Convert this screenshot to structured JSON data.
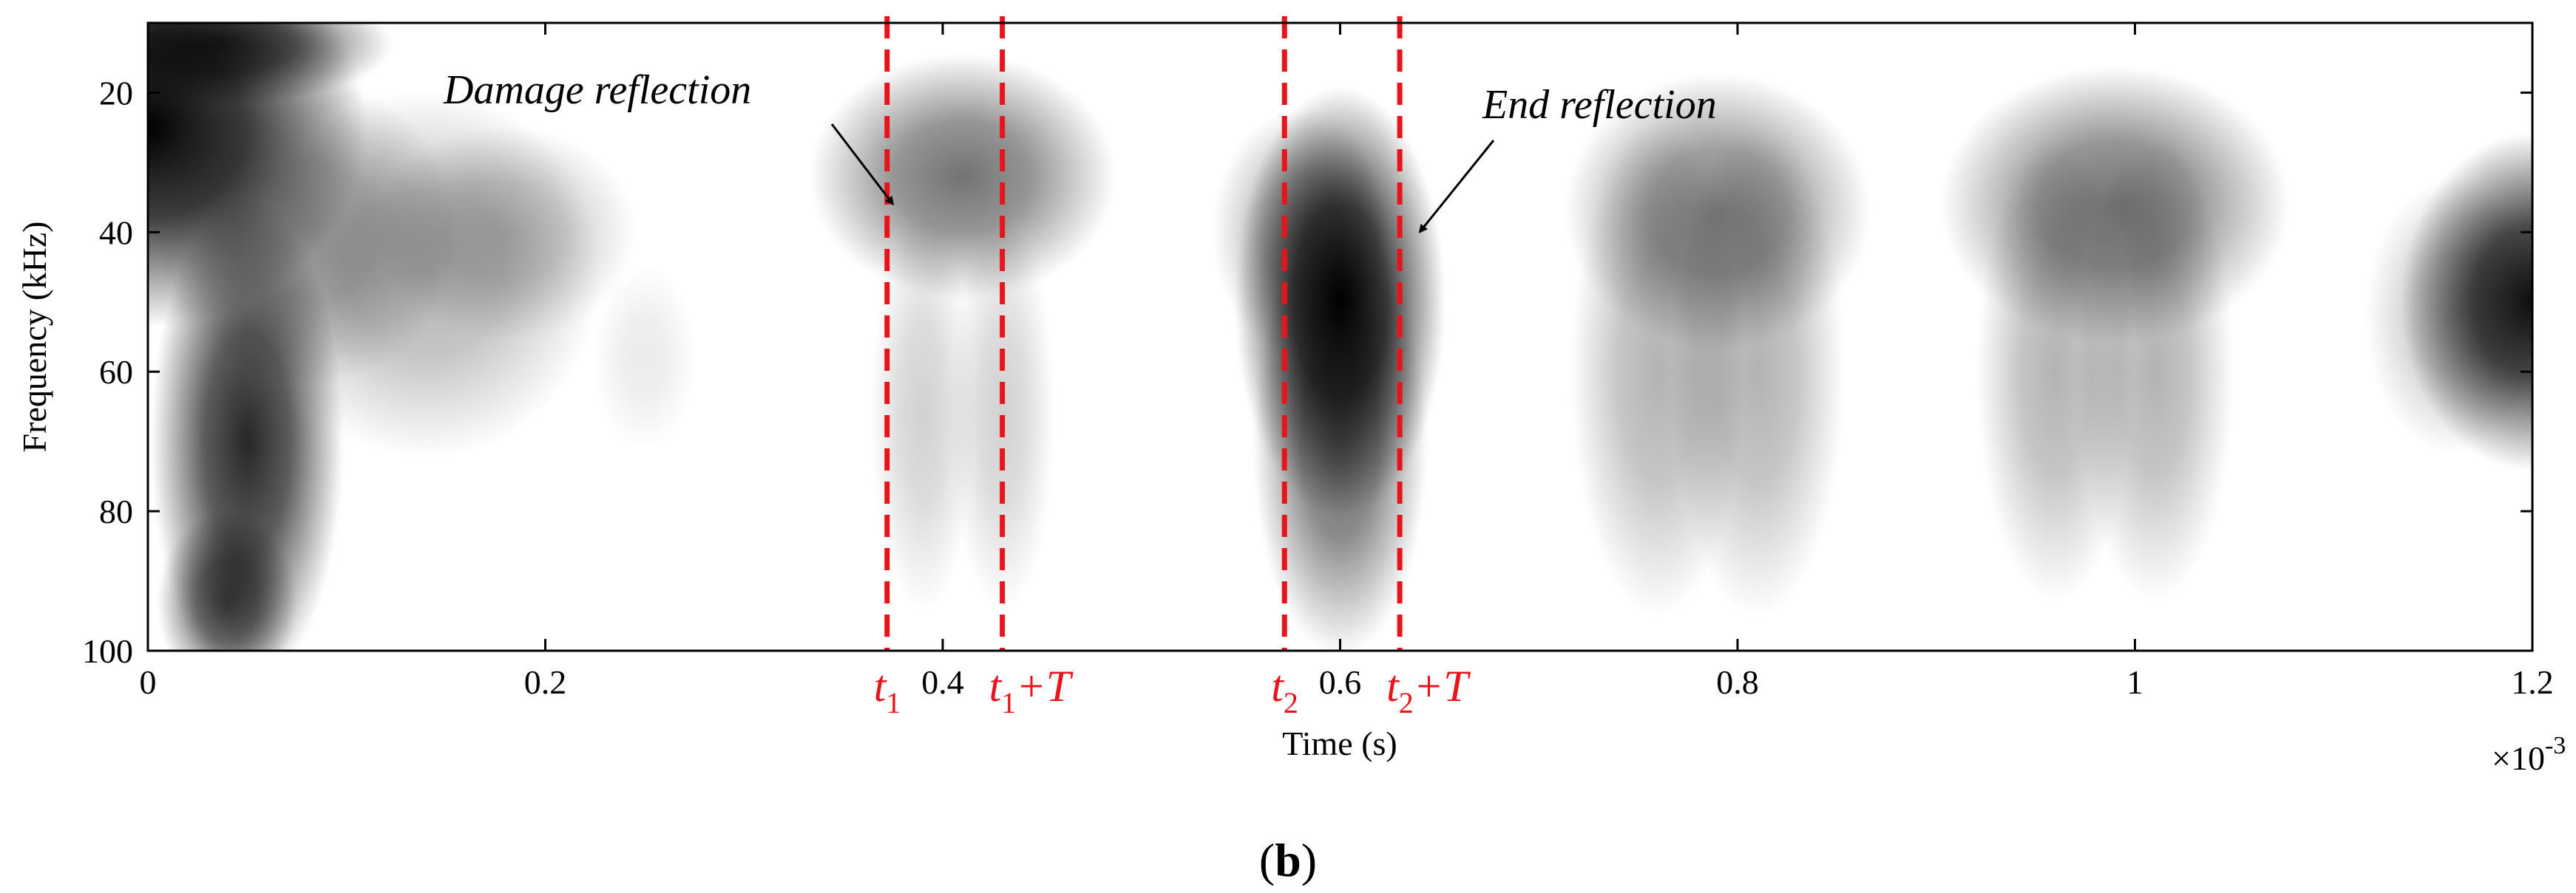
{
  "panel_label": {
    "open": "(",
    "letter": "b",
    "close": ")"
  },
  "colors": {
    "marker": "#e8141b",
    "ink": "#000000"
  },
  "chart_data": {
    "type": "heatmap",
    "colormap": "gray-reversed",
    "xlabel": "Time (s)",
    "ylabel": "Frequency (kHz)",
    "xlim": [
      0,
      1.2
    ],
    "ylim": [
      10,
      100
    ],
    "y_reversed": true,
    "x_multiplier_label": {
      "base": "×10",
      "exp": "-3"
    },
    "x_ticks": [
      {
        "value": 0,
        "label": "0"
      },
      {
        "value": 0.2,
        "label": "0.2"
      },
      {
        "value": 0.4,
        "label": "0.4"
      },
      {
        "value": 0.6,
        "label": "0.6"
      },
      {
        "value": 0.8,
        "label": "0.8"
      },
      {
        "value": 1.0,
        "label": "1"
      },
      {
        "value": 1.2,
        "label": "1.2"
      }
    ],
    "y_ticks": [
      {
        "value": 20,
        "label": "20"
      },
      {
        "value": 40,
        "label": "40"
      },
      {
        "value": 60,
        "label": "60"
      },
      {
        "value": 80,
        "label": "80"
      },
      {
        "value": 100,
        "label": "100"
      }
    ],
    "intensity_blobs": [
      {
        "t": 0.0,
        "f": 25,
        "st": 0.05,
        "sf": 13,
        "a": 1.0
      },
      {
        "t": 0.035,
        "f": 13,
        "st": 0.04,
        "sf": 4,
        "a": 0.8
      },
      {
        "t": 0.05,
        "f": 70,
        "st": 0.022,
        "sf": 16,
        "a": 0.85
      },
      {
        "t": 0.04,
        "f": 93,
        "st": 0.016,
        "sf": 6,
        "a": 0.7
      },
      {
        "t": 0.08,
        "f": 40,
        "st": 0.035,
        "sf": 10,
        "a": 0.35
      },
      {
        "t": 0.14,
        "f": 46,
        "st": 0.04,
        "sf": 12,
        "a": 0.3
      },
      {
        "t": 0.18,
        "f": 40,
        "st": 0.03,
        "sf": 7,
        "a": 0.25
      },
      {
        "t": 0.25,
        "f": 58,
        "st": 0.012,
        "sf": 6,
        "a": 0.08
      },
      {
        "t": 0.41,
        "f": 32,
        "st": 0.035,
        "sf": 8,
        "a": 0.55
      },
      {
        "t": 0.39,
        "f": 66,
        "st": 0.012,
        "sf": 13,
        "a": 0.18
      },
      {
        "t": 0.43,
        "f": 66,
        "st": 0.012,
        "sf": 13,
        "a": 0.18
      },
      {
        "t": 0.58,
        "f": 40,
        "st": 0.02,
        "sf": 8,
        "a": 0.35
      },
      {
        "t": 0.6,
        "f": 50,
        "st": 0.024,
        "sf": 14,
        "a": 1.0
      },
      {
        "t": 0.6,
        "f": 70,
        "st": 0.02,
        "sf": 14,
        "a": 0.6
      },
      {
        "t": 0.79,
        "f": 37,
        "st": 0.035,
        "sf": 9,
        "a": 0.5
      },
      {
        "t": 0.76,
        "f": 60,
        "st": 0.02,
        "sf": 16,
        "a": 0.3
      },
      {
        "t": 0.81,
        "f": 60,
        "st": 0.02,
        "sf": 16,
        "a": 0.3
      },
      {
        "t": 0.99,
        "f": 36,
        "st": 0.04,
        "sf": 9,
        "a": 0.55
      },
      {
        "t": 0.96,
        "f": 60,
        "st": 0.018,
        "sf": 15,
        "a": 0.3
      },
      {
        "t": 1.01,
        "f": 60,
        "st": 0.018,
        "sf": 15,
        "a": 0.3
      },
      {
        "t": 1.2,
        "f": 50,
        "st": 0.03,
        "sf": 11,
        "a": 0.95
      },
      {
        "t": 1.16,
        "f": 52,
        "st": 0.02,
        "sf": 9,
        "a": 0.25
      }
    ],
    "vertical_markers": [
      {
        "x": 0.372,
        "label": "t",
        "sub": "1",
        "suffix": ""
      },
      {
        "x": 0.43,
        "label": "t",
        "sub": "1",
        "suffix": "+T"
      },
      {
        "x": 0.572,
        "label": "t",
        "sub": "2",
        "suffix": ""
      },
      {
        "x": 0.63,
        "label": "t",
        "sub": "2",
        "suffix": "+T"
      }
    ],
    "annotations": [
      {
        "text": "Damage reflection",
        "arrow_to": {
          "t": 0.375,
          "f": 36
        }
      },
      {
        "text": "End reflection",
        "arrow_to": {
          "t": 0.64,
          "f": 40
        }
      }
    ]
  }
}
